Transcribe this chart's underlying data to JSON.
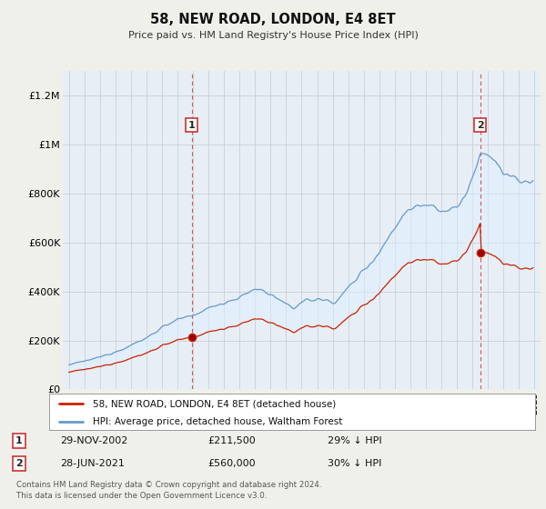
{
  "title": "58, NEW ROAD, LONDON, E4 8ET",
  "subtitle": "Price paid vs. HM Land Registry's House Price Index (HPI)",
  "ylabel_ticks": [
    "£0",
    "£200K",
    "£400K",
    "£600K",
    "£800K",
    "£1M",
    "£1.2M"
  ],
  "ytick_values": [
    0,
    200000,
    400000,
    600000,
    800000,
    1000000,
    1200000
  ],
  "ylim": [
    0,
    1300000
  ],
  "line1_color": "#cc2200",
  "line2_color": "#6699cc",
  "fill_color": "#ddeeff",
  "vline_color": "#cc3333",
  "sale1_year": 2002.92,
  "sale1_price": 211500,
  "sale2_year": 2021.5,
  "sale2_price": 560000,
  "sale1_date": "29-NOV-2002",
  "sale1_price_str": "£211,500",
  "sale1_info": "29% ↓ HPI",
  "sale2_date": "28-JUN-2021",
  "sale2_price_str": "£560,000",
  "sale2_info": "30% ↓ HPI",
  "legend_line1": "58, NEW ROAD, LONDON, E4 8ET (detached house)",
  "legend_line2": "HPI: Average price, detached house, Waltham Forest",
  "footer": "Contains HM Land Registry data © Crown copyright and database right 2024.\nThis data is licensed under the Open Government Licence v3.0.",
  "background_color": "#f0f0eb",
  "plot_bg_color": "#e8eef5",
  "grid_color": "#c8d0d8"
}
